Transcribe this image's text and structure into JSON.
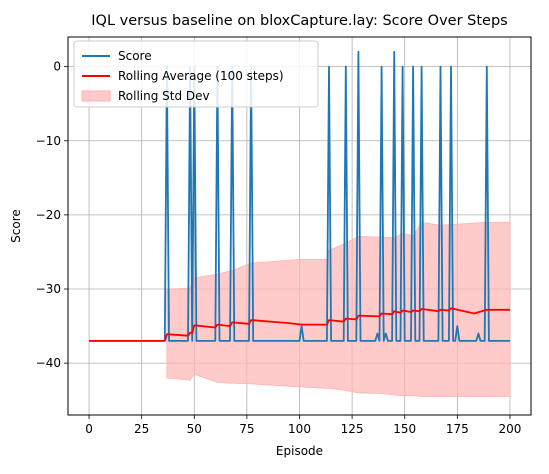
{
  "chart_data": {
    "type": "line",
    "title": "IQL versus baseline on bloxCapture.lay: Score Over Steps",
    "xlabel": "Episode",
    "ylabel": "Score",
    "xlim": [
      -10,
      210
    ],
    "ylim": [
      -47,
      4
    ],
    "x_ticks": [
      0,
      25,
      50,
      75,
      100,
      125,
      150,
      175,
      200
    ],
    "y_ticks": [
      0,
      -10,
      -20,
      -30,
      -40
    ],
    "y_tick_labels": [
      "0",
      "−10",
      "−20",
      "−30",
      "−40"
    ],
    "grid": true,
    "legend_position": "top-left",
    "colors": {
      "score": "#1f77b4",
      "rolling_mean": "#ff0000",
      "rolling_std": "#ffb3b3"
    },
    "score": {
      "name": "Score",
      "baseline": -37,
      "peaks": [
        {
          "x": 37,
          "y": 0
        },
        {
          "x": 48,
          "y": 0
        },
        {
          "x": 50,
          "y": 0
        },
        {
          "x": 61,
          "y": 0
        },
        {
          "x": 68,
          "y": 0
        },
        {
          "x": 77,
          "y": 0
        },
        {
          "x": 114,
          "y": 0
        },
        {
          "x": 122,
          "y": 0
        },
        {
          "x": 128,
          "y": 2
        },
        {
          "x": 139,
          "y": 0
        },
        {
          "x": 145,
          "y": 2
        },
        {
          "x": 149,
          "y": 0
        },
        {
          "x": 154,
          "y": 0
        },
        {
          "x": 158,
          "y": 0
        },
        {
          "x": 167,
          "y": 0
        },
        {
          "x": 172,
          "y": 0
        },
        {
          "x": 189,
          "y": 0
        }
      ],
      "small_bumps": [
        {
          "x": 101,
          "y": -35
        },
        {
          "x": 137,
          "y": -36
        },
        {
          "x": 141,
          "y": -36
        },
        {
          "x": 175,
          "y": -35
        },
        {
          "x": 185,
          "y": -36
        }
      ]
    },
    "rolling_mean": {
      "name": "Rolling Average (100 steps)",
      "x": [
        0,
        36,
        37,
        47,
        48,
        49,
        50,
        60,
        61,
        67,
        68,
        76,
        77,
        95,
        101,
        113,
        114,
        121,
        122,
        127,
        128,
        138,
        139,
        144,
        145,
        148,
        149,
        153,
        154,
        157,
        158,
        166,
        167,
        171,
        172,
        183,
        189,
        200
      ],
      "y": [
        -37,
        -37,
        -36.1,
        -36.3,
        -35.9,
        -35.9,
        -34.9,
        -35.2,
        -34.8,
        -35.0,
        -34.5,
        -34.7,
        -34.2,
        -34.6,
        -34.8,
        -34.8,
        -34.2,
        -34.4,
        -34.0,
        -34.1,
        -33.6,
        -33.7,
        -33.3,
        -33.4,
        -33.0,
        -33.2,
        -32.9,
        -33.1,
        -32.9,
        -33.0,
        -32.7,
        -33.0,
        -32.8,
        -32.9,
        -32.6,
        -33.3,
        -32.8,
        -32.8
      ]
    },
    "rolling_std": {
      "name": "Rolling Std Dev",
      "x": [
        37,
        48,
        50,
        61,
        68,
        77,
        100,
        113,
        114,
        122,
        128,
        139,
        145,
        149,
        154,
        158,
        167,
        172,
        189,
        200
      ],
      "upper": [
        -30,
        -29.9,
        -28.5,
        -28,
        -27.5,
        -26.5,
        -26,
        -26,
        -24.8,
        -23.8,
        -22.9,
        -23,
        -23.1,
        -22.5,
        -22.8,
        -21,
        -21.4,
        -21.3,
        -21,
        -21
      ],
      "lower": [
        -42,
        -42.3,
        -41.5,
        -42.6,
        -42.7,
        -42.8,
        -43.2,
        -43.4,
        -43.4,
        -43.7,
        -44,
        -44.1,
        -44.3,
        -44.4,
        -44.4,
        -44.5,
        -44.5,
        -44.5,
        -44.5,
        -44.5
      ]
    }
  }
}
